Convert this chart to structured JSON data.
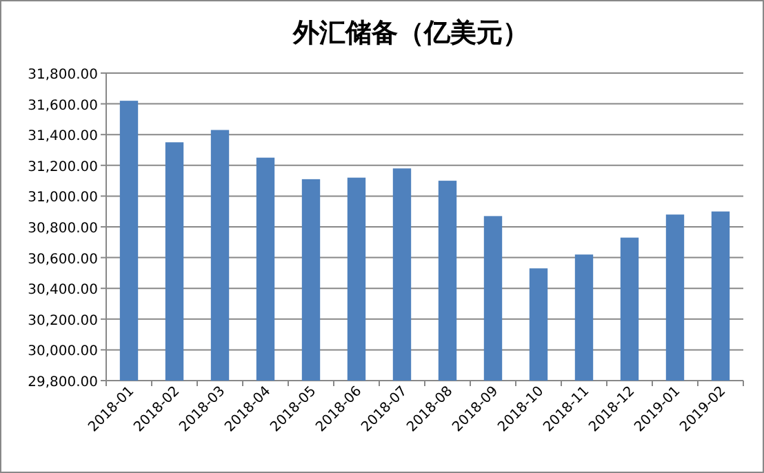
{
  "chart_data": {
    "type": "bar",
    "title": "外汇储备（亿美元）",
    "categories": [
      "2018-01",
      "2018-02",
      "2018-03",
      "2018-04",
      "2018-05",
      "2018-06",
      "2018-07",
      "2018-08",
      "2018-09",
      "2018-10",
      "2018-11",
      "2018-12",
      "2019-01",
      "2019-02"
    ],
    "values": [
      31620,
      31350,
      31430,
      31250,
      31110,
      31120,
      31180,
      31100,
      30870,
      30530,
      30620,
      30730,
      30880,
      30900
    ],
    "color": "#4f81bd",
    "ylim": [
      29800,
      31800
    ],
    "yticks": [
      {
        "value": 29800,
        "label": "29,800.00"
      },
      {
        "value": 30000,
        "label": "30,000.00"
      },
      {
        "value": 30200,
        "label": "30,200.00"
      },
      {
        "value": 30400,
        "label": "30,400.00"
      },
      {
        "value": 30600,
        "label": "30,600.00"
      },
      {
        "value": 30800,
        "label": "30,800.00"
      },
      {
        "value": 31000,
        "label": "31,000.00"
      },
      {
        "value": 31200,
        "label": "31,200.00"
      },
      {
        "value": 31400,
        "label": "31,400.00"
      },
      {
        "value": 31600,
        "label": "31,600.00"
      },
      {
        "value": 31800,
        "label": "31,800.00"
      }
    ],
    "grid": "y"
  }
}
